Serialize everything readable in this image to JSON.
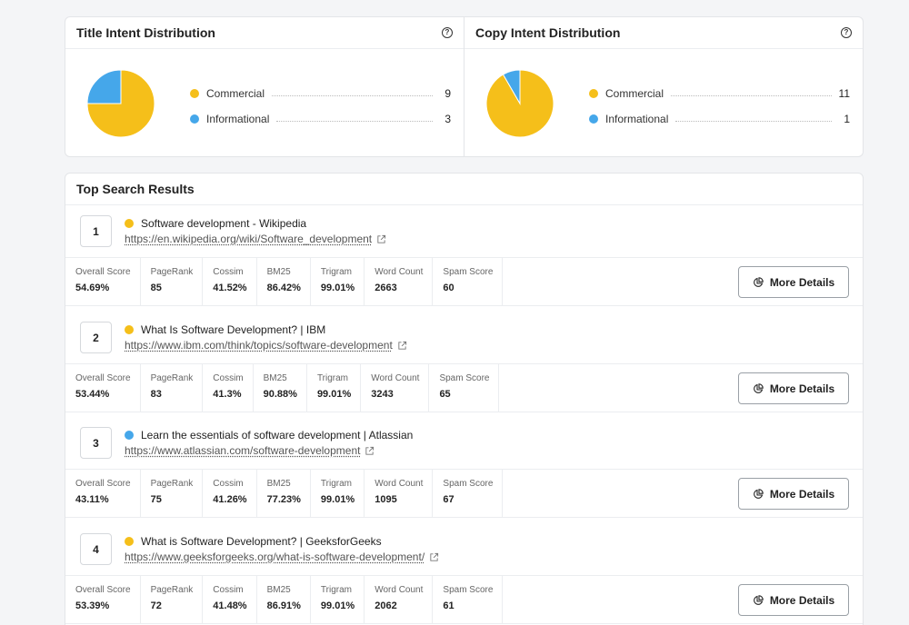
{
  "colors": {
    "commercial": "#f5bf1a",
    "informational": "#45a7ea"
  },
  "title_dist": {
    "title": "Title Intent Distribution",
    "help_icon": "question-circle-icon",
    "items": [
      {
        "label": "Commercial",
        "count": "9"
      },
      {
        "label": "Informational",
        "count": "3"
      }
    ]
  },
  "copy_dist": {
    "title": "Copy Intent Distribution",
    "help_icon": "question-circle-icon",
    "items": [
      {
        "label": "Commercial",
        "count": "11"
      },
      {
        "label": "Informational",
        "count": "1"
      }
    ]
  },
  "results": {
    "title": "Top Search Results",
    "metric_labels": [
      "Overall Score",
      "PageRank",
      "Cossim",
      "BM25",
      "Trigram",
      "Word Count",
      "Spam Score"
    ],
    "button_label": "More Details",
    "button_icon": "pie-chart-icon",
    "items": [
      {
        "rank": "1",
        "title": "Software development - Wikipedia",
        "url": "https://en.wikipedia.org/wiki/Software_development",
        "intent": "commercial",
        "metrics": [
          "54.69%",
          "85",
          "41.52%",
          "86.42%",
          "99.01%",
          "2663",
          "60"
        ]
      },
      {
        "rank": "2",
        "title": "What Is Software Development? | IBM",
        "url": "https://www.ibm.com/think/topics/software-development",
        "intent": "commercial",
        "metrics": [
          "53.44%",
          "83",
          "41.3%",
          "90.88%",
          "99.01%",
          "3243",
          "65"
        ]
      },
      {
        "rank": "3",
        "title": "Learn the essentials of software development | Atlassian",
        "url": "https://www.atlassian.com/software-development",
        "intent": "informational",
        "metrics": [
          "43.11%",
          "75",
          "41.26%",
          "77.23%",
          "99.01%",
          "1095",
          "67"
        ]
      },
      {
        "rank": "4",
        "title": "What is Software Development? | GeeksforGeeks",
        "url": "https://www.geeksforgeeks.org/what-is-software-development/",
        "intent": "commercial",
        "metrics": [
          "53.39%",
          "72",
          "41.48%",
          "86.91%",
          "99.01%",
          "2062",
          "61"
        ]
      }
    ]
  }
}
